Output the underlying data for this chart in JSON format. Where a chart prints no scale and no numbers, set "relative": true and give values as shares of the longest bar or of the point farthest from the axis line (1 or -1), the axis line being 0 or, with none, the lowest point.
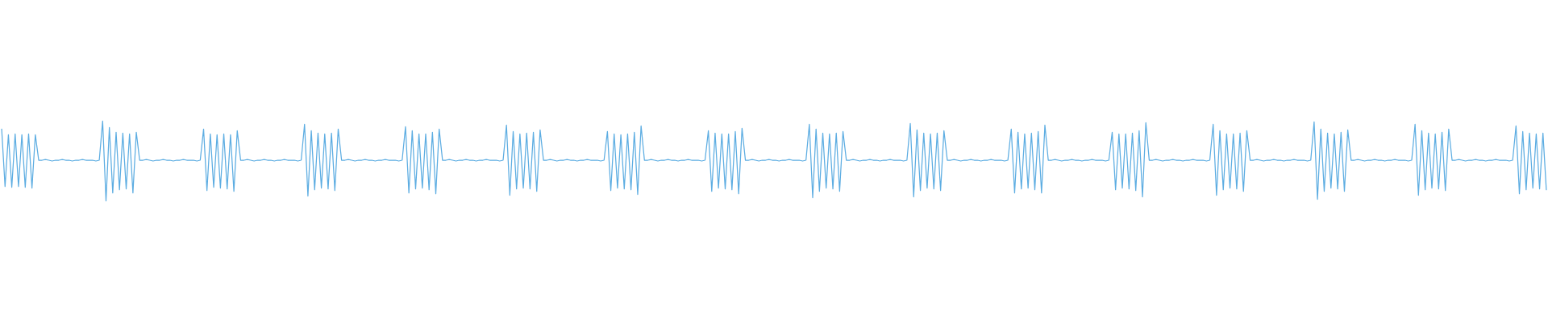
{
  "chart_data": {
    "type": "line",
    "relative": true,
    "categories": [
      null,
      null,
      null,
      null,
      null,
      null,
      null,
      null,
      null,
      null,
      null,
      null,
      null,
      null,
      null,
      null,
      null,
      null,
      null,
      null,
      null,
      null,
      null,
      null,
      null,
      null,
      null,
      null,
      null,
      null,
      null,
      null,
      null,
      null,
      null,
      null,
      null,
      null,
      null,
      null,
      null,
      null,
      null,
      null,
      null,
      null,
      null,
      null,
      null,
      null,
      null,
      null,
      null,
      null,
      null,
      null,
      null,
      null,
      null,
      null,
      null,
      null,
      null,
      null,
      null,
      null,
      null,
      null,
      null,
      null,
      null,
      null,
      null,
      null,
      null,
      null,
      null,
      null,
      null,
      null,
      null,
      null,
      null,
      null,
      null,
      null,
      null,
      null,
      null,
      null,
      null,
      null,
      null,
      null,
      null,
      null,
      null,
      null,
      null,
      null,
      null,
      null,
      null,
      null,
      null,
      null,
      null,
      null,
      null,
      null,
      null,
      null,
      null,
      null,
      null,
      null,
      null,
      null,
      null,
      null,
      null,
      null,
      null,
      null,
      null,
      null,
      null,
      null,
      null,
      null,
      null,
      null,
      null,
      null,
      null,
      null,
      null,
      null,
      null,
      null,
      null,
      null,
      null,
      null,
      null,
      null,
      null,
      null,
      null,
      null,
      null,
      null,
      null,
      null,
      null,
      null,
      null,
      null,
      null,
      null,
      null,
      null,
      null,
      null,
      null,
      null,
      null,
      null,
      null,
      null,
      null,
      null,
      null,
      null,
      null,
      null,
      null,
      null,
      null,
      null,
      null,
      null,
      null,
      null,
      null,
      null,
      null,
      null,
      null,
      null,
      null,
      null,
      null,
      null,
      null,
      null,
      null,
      null,
      null,
      null,
      null,
      null,
      null,
      null,
      null,
      null,
      null,
      null,
      null,
      null,
      null,
      null,
      null,
      null,
      null,
      null,
      null,
      null,
      null,
      null,
      null,
      null,
      null,
      null,
      null,
      null,
      null,
      null,
      null,
      null,
      null,
      null,
      null,
      null,
      null,
      null,
      null,
      null,
      null,
      null,
      null,
      null,
      null,
      null,
      null,
      null,
      null,
      null,
      null,
      null,
      null,
      null,
      null,
      null,
      null,
      null,
      null,
      null,
      null,
      null,
      null,
      null,
      null,
      null,
      null,
      null,
      null,
      null,
      null,
      null,
      null,
      null,
      null,
      null,
      null,
      null,
      null,
      null,
      null,
      null,
      null,
      null,
      null,
      null,
      null,
      null,
      null,
      null,
      null,
      null,
      null,
      null,
      null,
      null,
      null,
      null,
      null,
      null,
      null,
      null,
      null,
      null,
      null,
      null,
      null,
      null,
      null,
      null,
      null,
      null,
      null,
      null,
      null,
      null,
      null,
      null,
      null,
      null,
      null,
      null,
      null,
      null,
      null,
      null,
      null,
      null,
      null,
      null,
      null,
      null,
      null,
      null,
      null,
      null,
      null,
      null,
      null,
      null,
      null,
      null,
      null,
      null,
      null,
      null,
      null,
      null,
      null,
      null,
      null,
      null,
      null,
      null,
      null,
      null,
      null,
      null,
      null,
      null,
      null,
      null,
      null,
      null,
      null,
      null,
      null,
      null,
      null,
      null,
      null,
      null,
      null,
      null,
      null,
      null,
      null,
      null,
      null,
      null,
      null,
      null,
      null,
      null,
      null,
      null,
      null,
      null,
      null,
      null,
      null,
      null,
      null,
      null,
      null,
      null,
      null,
      null,
      null,
      null,
      null,
      null,
      null,
      null,
      null,
      null,
      null,
      null,
      null,
      null,
      null,
      null,
      null,
      null,
      null,
      null,
      null,
      null,
      null,
      null,
      null,
      null,
      null,
      null,
      null,
      null,
      null,
      null,
      null,
      null,
      null,
      null,
      null,
      null,
      null,
      null,
      null,
      null,
      null,
      null,
      null,
      null,
      null,
      null,
      null,
      null,
      null,
      null,
      null,
      null,
      null,
      null,
      null,
      null,
      null,
      null,
      null,
      null,
      null,
      null,
      null,
      null
    ],
    "series": [
      {
        "color": "#5dade2",
        "values": [
          0.9,
          0.18,
          0.83,
          0.17,
          0.84,
          0.18,
          0.83,
          0.17,
          0.84,
          0.16,
          0.83,
          0.51,
          0.51,
          0.52,
          0.51,
          0.5,
          0.51,
          0.51,
          0.52,
          0.51,
          0.51,
          0.5,
          0.51,
          0.51,
          0.52,
          0.51,
          0.51,
          0.51,
          0.5,
          0.51,
          1.0,
          0.0,
          0.92,
          0.1,
          0.86,
          0.14,
          0.85,
          0.15,
          0.84,
          0.1,
          0.86,
          0.51,
          0.51,
          0.52,
          0.51,
          0.5,
          0.51,
          0.51,
          0.52,
          0.51,
          0.51,
          0.5,
          0.51,
          0.51,
          0.52,
          0.51,
          0.51,
          0.51,
          0.5,
          0.51,
          0.9,
          0.13,
          0.84,
          0.17,
          0.83,
          0.16,
          0.84,
          0.15,
          0.83,
          0.12,
          0.88,
          0.51,
          0.51,
          0.52,
          0.51,
          0.5,
          0.51,
          0.51,
          0.52,
          0.51,
          0.51,
          0.5,
          0.51,
          0.51,
          0.52,
          0.51,
          0.51,
          0.51,
          0.5,
          0.51,
          0.96,
          0.06,
          0.88,
          0.14,
          0.85,
          0.16,
          0.84,
          0.15,
          0.85,
          0.13,
          0.9,
          0.51,
          0.51,
          0.52,
          0.51,
          0.5,
          0.51,
          0.51,
          0.52,
          0.51,
          0.51,
          0.5,
          0.51,
          0.51,
          0.52,
          0.51,
          0.51,
          0.51,
          0.5,
          0.51,
          0.93,
          0.1,
          0.88,
          0.15,
          0.84,
          0.16,
          0.84,
          0.14,
          0.86,
          0.09,
          0.9,
          0.51,
          0.51,
          0.52,
          0.51,
          0.5,
          0.51,
          0.51,
          0.52,
          0.51,
          0.51,
          0.5,
          0.51,
          0.51,
          0.52,
          0.51,
          0.51,
          0.51,
          0.5,
          0.51,
          0.95,
          0.07,
          0.87,
          0.15,
          0.84,
          0.16,
          0.85,
          0.15,
          0.86,
          0.12,
          0.89,
          0.51,
          0.51,
          0.52,
          0.51,
          0.5,
          0.51,
          0.51,
          0.52,
          0.51,
          0.51,
          0.5,
          0.51,
          0.51,
          0.52,
          0.51,
          0.51,
          0.51,
          0.5,
          0.51,
          0.87,
          0.13,
          0.84,
          0.16,
          0.83,
          0.15,
          0.84,
          0.14,
          0.86,
          0.08,
          0.94,
          0.51,
          0.51,
          0.52,
          0.51,
          0.5,
          0.51,
          0.51,
          0.52,
          0.51,
          0.51,
          0.5,
          0.51,
          0.51,
          0.52,
          0.51,
          0.51,
          0.51,
          0.5,
          0.51,
          0.88,
          0.12,
          0.85,
          0.16,
          0.84,
          0.15,
          0.84,
          0.14,
          0.87,
          0.09,
          0.91,
          0.51,
          0.51,
          0.52,
          0.51,
          0.5,
          0.51,
          0.51,
          0.52,
          0.51,
          0.51,
          0.5,
          0.51,
          0.51,
          0.52,
          0.51,
          0.51,
          0.51,
          0.5,
          0.51,
          0.96,
          0.04,
          0.9,
          0.12,
          0.85,
          0.16,
          0.84,
          0.15,
          0.85,
          0.12,
          0.87,
          0.51,
          0.51,
          0.52,
          0.51,
          0.5,
          0.51,
          0.51,
          0.52,
          0.51,
          0.51,
          0.5,
          0.51,
          0.51,
          0.52,
          0.51,
          0.51,
          0.51,
          0.5,
          0.51,
          0.97,
          0.05,
          0.89,
          0.13,
          0.85,
          0.16,
          0.84,
          0.15,
          0.85,
          0.13,
          0.88,
          0.51,
          0.51,
          0.52,
          0.51,
          0.5,
          0.51,
          0.51,
          0.52,
          0.51,
          0.51,
          0.5,
          0.51,
          0.51,
          0.52,
          0.51,
          0.51,
          0.51,
          0.5,
          0.51,
          0.9,
          0.1,
          0.86,
          0.15,
          0.84,
          0.16,
          0.85,
          0.14,
          0.87,
          0.1,
          0.95,
          0.51,
          0.51,
          0.52,
          0.51,
          0.5,
          0.51,
          0.51,
          0.52,
          0.51,
          0.51,
          0.5,
          0.51,
          0.51,
          0.52,
          0.51,
          0.51,
          0.51,
          0.5,
          0.51,
          0.86,
          0.14,
          0.84,
          0.16,
          0.84,
          0.15,
          0.85,
          0.13,
          0.88,
          0.05,
          0.98,
          0.51,
          0.51,
          0.52,
          0.51,
          0.5,
          0.51,
          0.51,
          0.52,
          0.51,
          0.51,
          0.5,
          0.51,
          0.51,
          0.52,
          0.51,
          0.51,
          0.51,
          0.5,
          0.51,
          0.96,
          0.07,
          0.88,
          0.14,
          0.84,
          0.16,
          0.84,
          0.15,
          0.85,
          0.12,
          0.88,
          0.51,
          0.51,
          0.52,
          0.51,
          0.5,
          0.51,
          0.51,
          0.52,
          0.51,
          0.51,
          0.5,
          0.51,
          0.51,
          0.52,
          0.51,
          0.51,
          0.51,
          0.5,
          0.51,
          0.99,
          0.02,
          0.9,
          0.12,
          0.85,
          0.16,
          0.84,
          0.15,
          0.86,
          0.12,
          0.89,
          0.51,
          0.51,
          0.52,
          0.51,
          0.5,
          0.51,
          0.51,
          0.52,
          0.51,
          0.51,
          0.5,
          0.51,
          0.51,
          0.52,
          0.51,
          0.51,
          0.51,
          0.5,
          0.51,
          0.96,
          0.07,
          0.88,
          0.14,
          0.85,
          0.16,
          0.84,
          0.15,
          0.86,
          0.13,
          0.9,
          0.51,
          0.51,
          0.52,
          0.51,
          0.5,
          0.51,
          0.51,
          0.52,
          0.51,
          0.51,
          0.5,
          0.51,
          0.51,
          0.52,
          0.51,
          0.51,
          0.51,
          0.5,
          0.51,
          0.94,
          0.09,
          0.87,
          0.14,
          0.85,
          0.16,
          0.84,
          0.15,
          0.85,
          0.14
        ]
      }
    ]
  }
}
